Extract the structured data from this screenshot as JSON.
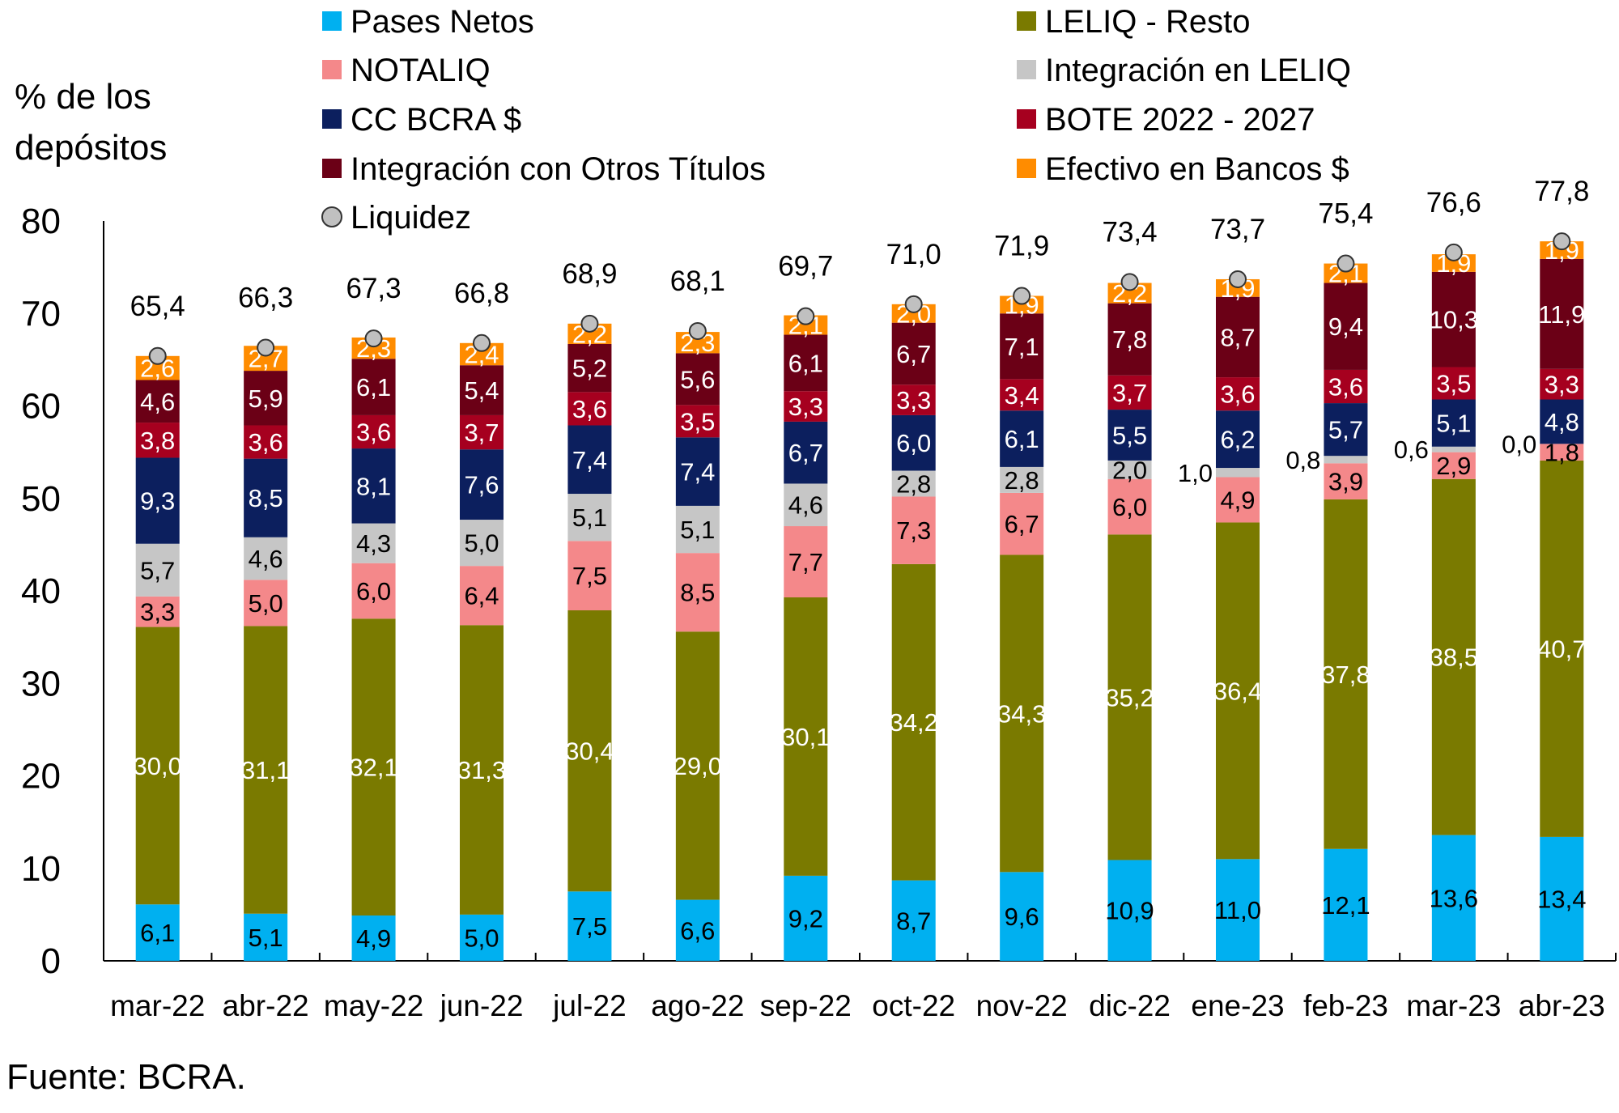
{
  "chart_data": {
    "type": "bar",
    "stacked": true,
    "ylabel": "% de los depósitos",
    "ylabel_lines": [
      "% de los",
      "depósitos"
    ],
    "ylim": [
      0,
      80
    ],
    "yticks": [
      0,
      10,
      20,
      30,
      40,
      50,
      60,
      70,
      80
    ],
    "grid": false,
    "legend_position": "top",
    "source": "Fuente: BCRA.",
    "categories": [
      "mar-22",
      "abr-22",
      "may-22",
      "jun-22",
      "jul-22",
      "ago-22",
      "sep-22",
      "oct-22",
      "nov-22",
      "dic-22",
      "ene-23",
      "feb-23",
      "mar-23",
      "abr-23"
    ],
    "series": [
      {
        "name": "Pases Netos",
        "color": "#00b0f0",
        "label_color": "#000000",
        "values": [
          6.1,
          5.1,
          4.9,
          5.0,
          7.5,
          6.6,
          9.2,
          8.7,
          9.6,
          10.9,
          11.0,
          12.1,
          13.6,
          13.4
        ]
      },
      {
        "name": "LELIQ - Resto",
        "color": "#7a7a00",
        "label_color": "#ffffff",
        "values": [
          30.0,
          31.1,
          32.1,
          31.3,
          30.4,
          29.0,
          30.1,
          34.2,
          34.3,
          35.2,
          36.4,
          37.8,
          38.5,
          40.7
        ]
      },
      {
        "name": "NOTALIQ",
        "color": "#f4888a",
        "label_color": "#000000",
        "values": [
          3.3,
          5.0,
          6.0,
          6.4,
          7.5,
          8.5,
          7.7,
          7.3,
          6.7,
          6.0,
          4.9,
          3.9,
          2.9,
          1.8
        ]
      },
      {
        "name": "Integración en LELIQ",
        "color": "#c6c6c6",
        "label_color": "#000000",
        "values": [
          5.7,
          4.6,
          4.3,
          5.0,
          5.1,
          5.1,
          4.6,
          2.8,
          2.8,
          2.0,
          1.0,
          0.8,
          0.6,
          0.0
        ]
      },
      {
        "name": "CC BCRA $",
        "color": "#0c1f5e",
        "label_color": "#ffffff",
        "values": [
          9.3,
          8.5,
          8.1,
          7.6,
          7.4,
          7.4,
          6.7,
          6.0,
          6.1,
          5.5,
          6.2,
          5.7,
          5.1,
          4.8
        ]
      },
      {
        "name": "BOTE 2022 - 2027",
        "color": "#a6001f",
        "label_color": "#ffffff",
        "values": [
          3.8,
          3.6,
          3.6,
          3.7,
          3.6,
          3.5,
          3.3,
          3.3,
          3.4,
          3.7,
          3.6,
          3.6,
          3.5,
          3.3
        ]
      },
      {
        "name": "Integración con Otros Títulos",
        "color": "#6b0016",
        "label_color": "#ffffff",
        "values": [
          4.6,
          5.9,
          6.1,
          5.4,
          5.2,
          5.6,
          6.1,
          6.7,
          7.1,
          7.8,
          8.7,
          9.4,
          10.3,
          11.9
        ]
      },
      {
        "name": "Efectivo en Bancos $",
        "color": "#ff8c00",
        "label_color": "#ffffff",
        "values": [
          2.6,
          2.7,
          2.3,
          2.4,
          2.2,
          2.3,
          2.1,
          2.0,
          1.9,
          2.2,
          1.9,
          2.1,
          1.9,
          1.9
        ]
      }
    ],
    "marker_series": {
      "name": "Liquidez",
      "color": "#c0c0c0",
      "values": [
        65.4,
        66.3,
        67.3,
        66.8,
        68.9,
        68.1,
        69.7,
        71.0,
        71.9,
        73.4,
        73.7,
        75.4,
        76.6,
        77.8
      ]
    }
  }
}
